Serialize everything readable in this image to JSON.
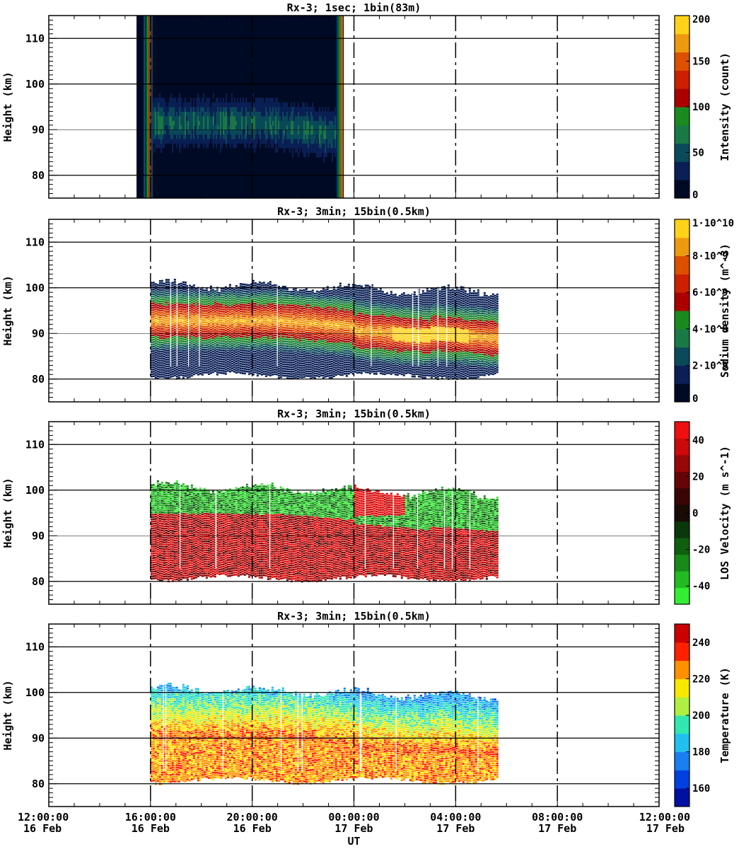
{
  "chart_data": {
    "type": "heatmap",
    "x_ticks": [
      {
        "time": "12:00:00",
        "date": "16 Feb"
      },
      {
        "time": "16:00:00",
        "date": "16 Feb"
      },
      {
        "time": "20:00:00",
        "date": "16 Feb"
      },
      {
        "time": "00:00:00",
        "date": "17 Feb"
      },
      {
        "time": "04:00:00",
        "date": "17 Feb"
      },
      {
        "time": "08:00:00",
        "date": "17 Feb"
      },
      {
        "time": "12:00:00",
        "date": "17 Feb"
      }
    ],
    "xlabel": "UT",
    "xlim_hours": [
      0,
      24
    ],
    "ylabel": "Height (km)",
    "ylim": [
      75,
      115
    ],
    "y_ticks": [
      80,
      90,
      100,
      110
    ],
    "panels": [
      {
        "title": "Rx-3;  1sec; 1bin(83m)",
        "quantity": "Intensity (count)",
        "colorbar_ticks": [
          "0",
          "50",
          "100",
          "150",
          "200"
        ],
        "colorbar_range": [
          0,
          200
        ],
        "colors": [
          "#000a24",
          "#0a1f55",
          "#0a4a5a",
          "#1a7a45",
          "#1a8a20",
          "#aa0000",
          "#cc2000",
          "#dd5000",
          "#ee9a10",
          "#ffd21a"
        ],
        "data_start_hour": 3.45,
        "data_end_hour": 11.6
      },
      {
        "title": "Rx-3; 3min; 15bin(0.5km)",
        "quantity": "Sodium density (m^-3)",
        "colorbar_ticks": [
          "0",
          "2·10^9",
          "4·10^9",
          "6·10^9",
          "8·10^9",
          "1·10^10"
        ],
        "colorbar_range": [
          0,
          10000000000.0
        ],
        "colors": [
          "#000a24",
          "#0a1f55",
          "#0a4a5a",
          "#1a7a45",
          "#1a8a20",
          "#aa0000",
          "#cc2000",
          "#dd5000",
          "#ee9a10",
          "#ffd21a"
        ],
        "data_start_hour": 4.0,
        "data_end_hour": 17.6
      },
      {
        "title": "Rx-3; 3min; 15bin(0.5km)",
        "quantity": "LOS Velocity (m s^-1)",
        "colorbar_ticks": [
          "-40",
          "-20",
          "0",
          "20",
          "40"
        ],
        "colorbar_range": [
          -50,
          50
        ],
        "colors": [
          "#33ee33",
          "#22bb22",
          "#178a17",
          "#0f5f0f",
          "#0a380a",
          "#180a05",
          "#3a0505",
          "#660505",
          "#990808",
          "#cc0a0a",
          "#ee1010"
        ],
        "data_start_hour": 4.0,
        "data_end_hour": 17.6
      },
      {
        "title": "Rx-3; 3min; 15bin(0.5km)",
        "quantity": "Temperature (K)",
        "colorbar_ticks": [
          "160",
          "180",
          "200",
          "220",
          "240"
        ],
        "colorbar_range": [
          150,
          250
        ],
        "colors": [
          "#0010a0",
          "#0040e0",
          "#1880f0",
          "#20c0f0",
          "#30e8b0",
          "#b0f040",
          "#f8e800",
          "#ff9000",
          "#ff2000",
          "#cc0000"
        ],
        "data_start_hour": 4.0,
        "data_end_hour": 17.6
      }
    ]
  }
}
